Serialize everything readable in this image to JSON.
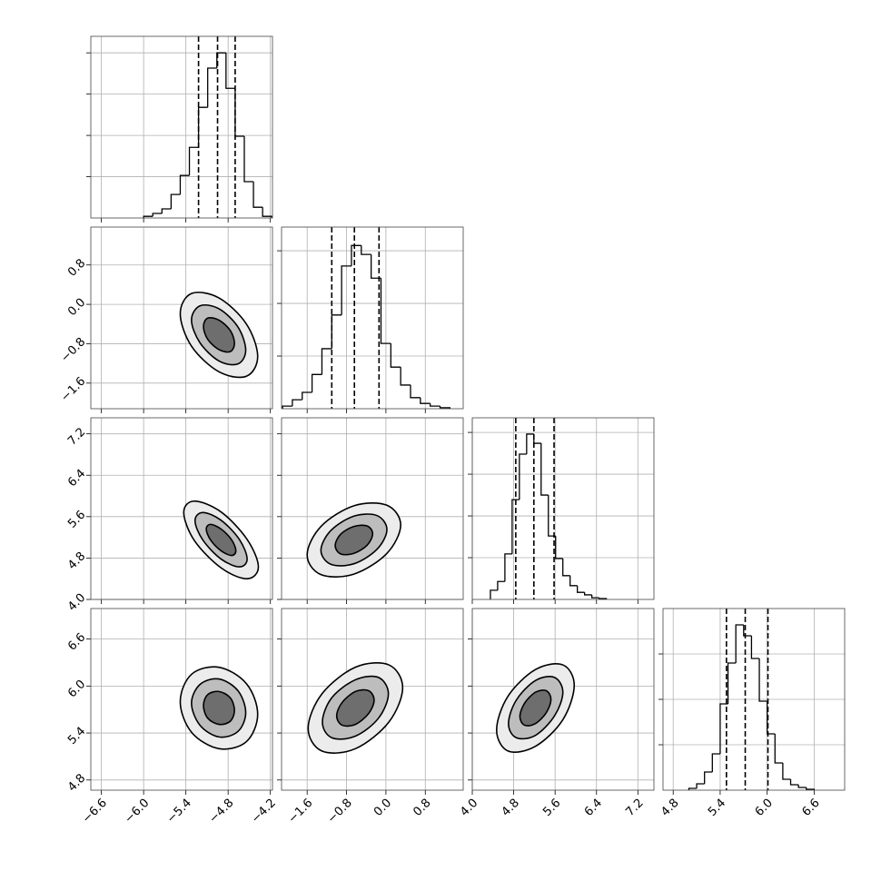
{
  "chart_data": [
    {
      "type": "histogram",
      "grid": true,
      "xlim": [
        -6.75,
        -4.17
      ],
      "xticks": [
        -6.6,
        -6.0,
        -5.4,
        -4.8,
        -4.2
      ],
      "ylim": [
        0,
        4400
      ],
      "yticks": [
        1000,
        2000,
        3000,
        4000
      ],
      "bins": [
        -6.0,
        -5.87,
        -5.74,
        -5.61,
        -5.48,
        -5.35,
        -5.22,
        -5.09,
        -4.96,
        -4.83,
        -4.7,
        -4.57,
        -4.44,
        -4.31,
        -4.18
      ],
      "counts": [
        40,
        110,
        220,
        570,
        1030,
        1710,
        2680,
        3630,
        4000,
        3140,
        1980,
        880,
        260,
        40
      ],
      "quantiles": [
        -5.22,
        -4.95,
        -4.7
      ]
    },
    {
      "type": "contour",
      "grid": true,
      "xlim": [
        -6.75,
        -4.17
      ],
      "xticks": [
        -6.6,
        -6.0,
        -5.4,
        -4.8,
        -4.2
      ],
      "ylim": [
        -2.12,
        1.57
      ],
      "yticks": [
        {
          "value": -1.6,
          "label": "−1.6"
        },
        {
          "value": -0.8,
          "label": "−0.8"
        },
        {
          "value": 0,
          "label": "0.0"
        },
        0.8
      ],
      "contours": [
        {
          "x": [
            -4.38,
            -4.54,
            -4.93,
            -5.32,
            -5.48,
            -5.32,
            -4.93,
            -4.54
          ],
          "y": [
            -1.06,
            -0.4,
            0.13,
            0.22,
            -0.19,
            -0.85,
            -1.37,
            -1.46
          ]
        },
        {
          "x": [
            -4.55,
            -4.66,
            -4.93,
            -5.2,
            -5.32,
            -5.2,
            -4.93,
            -4.66
          ],
          "y": [
            -0.93,
            -0.46,
            -0.09,
            -0.03,
            -0.32,
            -0.78,
            -1.15,
            -1.21
          ]
        },
        {
          "x": [
            -4.71,
            -4.77,
            -4.93,
            -5.09,
            -5.15,
            -5.09,
            -4.93,
            -4.77
          ],
          "y": [
            -0.79,
            -0.53,
            -0.32,
            -0.28,
            -0.45,
            -0.71,
            -0.92,
            -0.96
          ]
        }
      ]
    },
    {
      "type": "histogram",
      "grid": true,
      "xlim": [
        -2.12,
        1.57
      ],
      "xticks": [
        -1.6,
        -0.8,
        0,
        0.8
      ],
      "ylim": [
        0,
        3450
      ],
      "yticks": [
        1000,
        2000,
        3000
      ],
      "bins": [
        -2.1,
        -1.9,
        -1.7,
        -1.5,
        -1.3,
        -1.1,
        -0.9,
        -0.7,
        -0.5,
        -0.3,
        -0.1,
        0.1,
        0.3,
        0.5,
        0.7,
        0.9,
        1.1,
        1.3
      ],
      "counts": [
        50,
        170,
        310,
        650,
        1140,
        1780,
        2710,
        3100,
        2930,
        2480,
        1240,
        790,
        450,
        210,
        100,
        50,
        20
      ],
      "quantiles": [
        -1.1,
        -0.64,
        -0.14
      ]
    },
    {
      "type": "contour",
      "grid": true,
      "xlim": [
        -6.75,
        -4.17
      ],
      "xticks": [
        -6.6,
        -6.0,
        -5.4,
        -4.8,
        -4.2
      ],
      "ylim": [
        4.0,
        7.51
      ],
      "yticks": [
        {
          "value": 4,
          "label": "4.0"
        },
        4.8,
        5.6,
        6.4,
        7.2
      ],
      "contours": [
        {
          "x": [
            -4.37,
            -4.53,
            -4.9,
            -5.28,
            -5.43,
            -5.28,
            -4.9,
            -4.53
          ],
          "y": [
            4.63,
            5.16,
            5.69,
            5.9,
            5.68,
            5.14,
            4.61,
            4.4
          ]
        },
        {
          "x": [
            -4.53,
            -4.64,
            -4.9,
            -5.16,
            -5.27,
            -5.16,
            -4.9,
            -4.64
          ],
          "y": [
            4.78,
            5.16,
            5.53,
            5.68,
            5.52,
            5.15,
            4.78,
            4.63
          ]
        },
        {
          "x": [
            -4.69,
            -4.75,
            -4.9,
            -5.05,
            -5.11,
            -5.05,
            -4.9,
            -4.75
          ],
          "y": [
            4.94,
            5.15,
            5.36,
            5.45,
            5.36,
            5.15,
            4.94,
            4.85
          ]
        }
      ]
    },
    {
      "type": "contour",
      "grid": true,
      "xlim": [
        -2.12,
        1.57
      ],
      "xticks": [
        -1.6,
        -0.8,
        0,
        0.8
      ],
      "ylim": [
        4.0,
        7.51
      ],
      "yticks": [
        4.0,
        4.8,
        5.6,
        6.4,
        7.2
      ],
      "contours": [
        {
          "x": [
            0.3,
            0.02,
            -0.65,
            -1.32,
            -1.6,
            -1.32,
            -0.65,
            0.02
          ],
          "y": [
            5.44,
            5.82,
            5.81,
            5.41,
            4.86,
            4.48,
            4.49,
            4.89
          ]
        },
        {
          "x": [
            0.02,
            -0.18,
            -0.65,
            -1.12,
            -1.32,
            -1.12,
            -0.65,
            -0.18
          ],
          "y": [
            5.35,
            5.62,
            5.61,
            5.33,
            4.95,
            4.68,
            4.69,
            4.97
          ]
        },
        {
          "x": [
            -0.27,
            -0.38,
            -0.65,
            -0.92,
            -1.03,
            -0.92,
            -0.65,
            -0.38
          ],
          "y": [
            5.27,
            5.42,
            5.41,
            5.26,
            5.04,
            4.88,
            4.89,
            5.05
          ]
        }
      ]
    },
    {
      "type": "histogram",
      "grid": true,
      "xlim": [
        4.0,
        7.51
      ],
      "xticks": [
        4.0,
        4.8,
        5.6,
        6.4,
        7.2
      ],
      "ylim": [
        0,
        4350
      ],
      "yticks": [
        1000,
        2000,
        3000,
        4000
      ],
      "bins": [
        4.35,
        4.49,
        4.63,
        4.77,
        4.91,
        5.05,
        5.19,
        5.33,
        5.47,
        5.61,
        5.75,
        5.89,
        6.03,
        6.17,
        6.31,
        6.45,
        6.59
      ],
      "counts": [
        220,
        430,
        1090,
        2390,
        3480,
        3960,
        3740,
        2500,
        1520,
        980,
        570,
        330,
        170,
        110,
        40,
        20
      ],
      "quantiles": [
        4.84,
        5.19,
        5.58
      ]
    },
    {
      "type": "contour",
      "grid": true,
      "xlim": [
        -6.75,
        -4.17
      ],
      "xticks": [
        {
          "value": -6.6,
          "label": "−6.6"
        },
        {
          "value": -6.0,
          "label": "−6.0"
        },
        {
          "value": -5.4,
          "label": "−5.4"
        },
        {
          "value": -4.8,
          "label": "−4.8"
        },
        {
          "value": -4.2,
          "label": "−4.2"
        }
      ],
      "ylim": [
        4.67,
        6.99
      ],
      "yticks": [
        4.8,
        5.4,
        {
          "value": 6,
          "label": "6.0"
        },
        6.6
      ],
      "contours": [
        {
          "x": [
            -4.38,
            -4.54,
            -4.93,
            -5.32,
            -5.48,
            -5.32,
            -4.93,
            -4.54
          ],
          "y": [
            5.64,
            6.03,
            6.24,
            6.15,
            5.8,
            5.41,
            5.2,
            5.29
          ]
        },
        {
          "x": [
            -4.55,
            -4.66,
            -4.93,
            -5.2,
            -5.32,
            -5.2,
            -4.93,
            -4.66
          ],
          "y": [
            5.66,
            5.94,
            6.09,
            6.02,
            5.78,
            5.5,
            5.35,
            5.42
          ]
        },
        {
          "x": [
            -4.71,
            -4.77,
            -4.93,
            -5.09,
            -5.15,
            -5.09,
            -4.93,
            -4.77
          ],
          "y": [
            5.69,
            5.85,
            5.93,
            5.89,
            5.75,
            5.59,
            5.51,
            5.55
          ]
        }
      ]
    },
    {
      "type": "contour",
      "grid": true,
      "xlim": [
        -2.12,
        1.57
      ],
      "xticks": [
        {
          "value": -1.6,
          "label": "−1.6"
        },
        {
          "value": -0.8,
          "label": "−0.8"
        },
        {
          "value": 0,
          "label": "0.0"
        },
        0.8
      ],
      "ylim": [
        4.67,
        6.99
      ],
      "yticks": [
        4.8,
        5.4,
        6.0,
        6.6
      ],
      "contours": [
        {
          "x": [
            0.34,
            0.06,
            -0.62,
            -1.3,
            -1.58,
            -1.3,
            -0.62,
            0.06
          ],
          "y": [
            5.98,
            6.27,
            6.24,
            5.9,
            5.46,
            5.17,
            5.2,
            5.54
          ]
        },
        {
          "x": [
            0.05,
            -0.15,
            -0.62,
            -1.1,
            -1.29,
            -1.1,
            -0.62,
            -0.15
          ],
          "y": [
            5.9,
            6.11,
            6.08,
            5.85,
            5.54,
            5.34,
            5.36,
            5.59
          ]
        },
        {
          "x": [
            -0.24,
            -0.35,
            -0.62,
            -0.89,
            -1.0,
            -0.89,
            -0.62,
            -0.35
          ],
          "y": [
            5.82,
            5.94,
            5.93,
            5.79,
            5.62,
            5.5,
            5.51,
            5.65
          ]
        }
      ]
    },
    {
      "type": "contour",
      "grid": true,
      "xlim": [
        4.0,
        7.51
      ],
      "xticks": [
        {
          "value": 4,
          "label": "4.0"
        },
        4.8,
        5.6,
        6.4,
        7.2
      ],
      "ylim": [
        4.67,
        6.99
      ],
      "yticks": [
        4.8,
        5.4,
        6.0,
        6.6
      ],
      "contours": [
        {
          "x": [
            5.97,
            5.75,
            5.22,
            4.69,
            4.47,
            4.69,
            5.22,
            5.75
          ],
          "y": [
            6.01,
            6.27,
            6.21,
            5.87,
            5.44,
            5.17,
            5.23,
            5.57
          ]
        },
        {
          "x": [
            5.75,
            5.59,
            5.22,
            4.85,
            4.7,
            4.85,
            5.22,
            5.59
          ],
          "y": [
            5.92,
            6.11,
            6.07,
            5.82,
            5.52,
            5.34,
            5.37,
            5.62
          ]
        },
        {
          "x": [
            5.52,
            5.43,
            5.22,
            5.01,
            4.92,
            5.01,
            5.22,
            5.43
          ],
          "y": [
            5.83,
            5.94,
            5.92,
            5.78,
            5.61,
            5.5,
            5.52,
            5.66
          ]
        }
      ]
    },
    {
      "type": "histogram",
      "grid": true,
      "xlim": [
        4.67,
        6.99
      ],
      "xticks": [
        4.8,
        5.4,
        {
          "value": 6,
          "label": "6.0"
        },
        6.6
      ],
      "ylim": [
        0,
        4000
      ],
      "yticks": [
        1000,
        2000,
        3000
      ],
      "bins": [
        5.0,
        5.1,
        5.2,
        5.3,
        5.4,
        5.5,
        5.6,
        5.7,
        5.8,
        5.9,
        6.0,
        6.1,
        6.2,
        6.3,
        6.4,
        6.5,
        6.6
      ],
      "counts": [
        40,
        140,
        400,
        800,
        1900,
        2800,
        3640,
        3400,
        2900,
        1960,
        1240,
        600,
        240,
        120,
        60,
        20
      ],
      "quantiles": [
        5.48,
        5.72,
        6.01
      ]
    }
  ]
}
